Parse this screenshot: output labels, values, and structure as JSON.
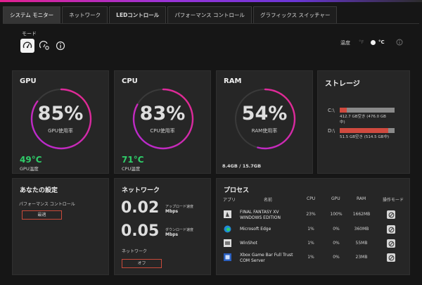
{
  "tabs": [
    {
      "label": "システム モニター",
      "active": true
    },
    {
      "label": "ネットワーク"
    },
    {
      "label": "LEDコントロール"
    },
    {
      "label": "パフォーマンス コントロール"
    },
    {
      "label": "グラフィックス スイッチャー"
    }
  ],
  "mode": {
    "label": "モード",
    "buttons": [
      "speedometer-icon",
      "performance-gauge-icon",
      "info-icon"
    ]
  },
  "temperature": {
    "label": "温度",
    "unit_f": "°F",
    "unit_c": "°C"
  },
  "gpu": {
    "title": "GPU",
    "usage_value": "85%",
    "usage_fraction": 0.85,
    "usage_label": "GPU使用率",
    "temp": "49°C",
    "temp_label": "GPU温度"
  },
  "cpu": {
    "title": "CPU",
    "usage_value": "83%",
    "usage_fraction": 0.83,
    "usage_label": "CPU使用率",
    "temp": "71°C",
    "temp_label": "CPU温度"
  },
  "ram": {
    "title": "RAM",
    "usage_value": "54%",
    "usage_fraction": 0.54,
    "usage_label": "RAM使用率",
    "usage": "8.4GB / 15.7GB"
  },
  "storage": {
    "title": "ストレージ",
    "drives": [
      {
        "label": "C:\\",
        "used_fraction": 0.13,
        "info_line1": "412.7 GB空き (476.0 GB",
        "info_line2": "中)"
      },
      {
        "label": "D:\\",
        "used_fraction": 0.89,
        "info_line1": "51.5 GB空き (514.5 GB中)",
        "info_line2": ""
      }
    ]
  },
  "settings": {
    "title": "あなたの設定",
    "perf_label": "パフォーマンス コントロール",
    "perf_value": "最適"
  },
  "network": {
    "title": "ネットワーク",
    "upload_value": "0.02",
    "upload_label": "アップロード速度",
    "upload_unit": "Mbps",
    "download_value": "0.05",
    "download_label": "ダウンロード速度",
    "download_unit": "Mbps",
    "toggle_label": "ネットワーク",
    "toggle_value": "オフ"
  },
  "process": {
    "title": "プロセス",
    "headers": {
      "app": "アプリ",
      "name": "名前",
      "cpu": "CPU",
      "gpu": "GPU",
      "ram": "RAM",
      "mode": "操作モード"
    },
    "rows": [
      {
        "icon": "final-fantasy-icon",
        "name1": "FINAL FANTASY XV",
        "name2": "WINDOWS EDITION",
        "cpu": "23%",
        "gpu": "100%",
        "ram": "1662MB"
      },
      {
        "icon": "edge-icon",
        "name1": "Microsoft Edge",
        "name2": "",
        "cpu": "1%",
        "gpu": "0%",
        "ram": "360MB"
      },
      {
        "icon": "winshot-icon",
        "name1": "WinShot",
        "name2": "",
        "cpu": "1%",
        "gpu": "0%",
        "ram": "55MB"
      },
      {
        "icon": "game-bar-icon",
        "name1": "Xbox Game Bar Full Trust",
        "name2": "COM Server",
        "cpu": "1%",
        "gpu": "0%",
        "ram": "23MB"
      }
    ]
  }
}
